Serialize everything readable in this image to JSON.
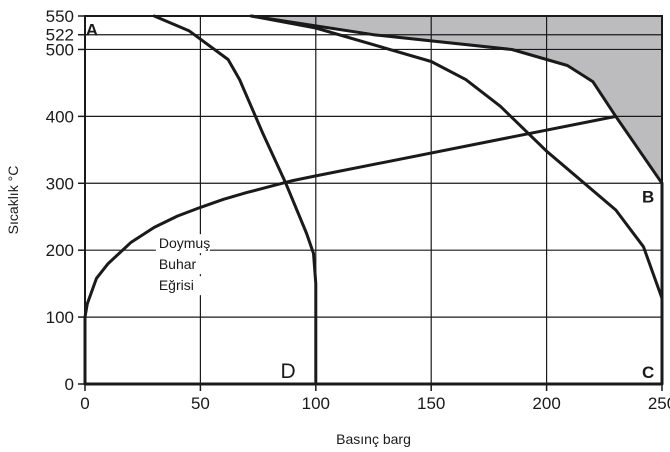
{
  "chart_data": {
    "type": "line",
    "xlabel": "Basınç barg",
    "ylabel": "Sıcaklık °C",
    "xlim": [
      0,
      250
    ],
    "ylim": [
      0,
      550
    ],
    "x_ticks": [
      0,
      50,
      100,
      150,
      200,
      250
    ],
    "y_ticks": [
      0,
      100,
      200,
      300,
      400,
      500,
      522,
      550
    ],
    "grid": true,
    "shaded_color": "#bcbcbe",
    "line_color": "#1a1a1a",
    "corner_labels": [
      {
        "key": "A",
        "text": "A",
        "x": 3,
        "y": 530
      },
      {
        "key": "B",
        "text": "B",
        "x": 244,
        "y": 280
      },
      {
        "key": "C",
        "text": "C",
        "x": 244,
        "y": 18
      },
      {
        "key": "D",
        "text": "D",
        "x": 88,
        "y": 18
      }
    ],
    "annotation": {
      "lines": [
        "Doymuş",
        "Buhar",
        "Eğrisi"
      ],
      "x": 32,
      "y": 203
    },
    "shaded_region": {
      "points": [
        [
          72,
          550
        ],
        [
          125,
          522
        ],
        [
          185,
          500
        ],
        [
          209,
          476
        ],
        [
          220,
          452
        ],
        [
          230,
          400
        ],
        [
          250,
          300
        ],
        [
          250,
          550
        ]
      ]
    },
    "series": [
      {
        "key": "saturation",
        "points": [
          [
            0,
            100
          ],
          [
            1,
            120
          ],
          [
            5,
            158
          ],
          [
            10,
            180
          ],
          [
            20,
            212
          ],
          [
            30,
            234
          ],
          [
            40,
            251
          ],
          [
            50,
            264
          ],
          [
            60,
            276
          ],
          [
            70,
            286
          ],
          [
            80,
            295
          ],
          [
            90,
            304
          ],
          [
            100,
            311
          ],
          [
            230,
            400
          ]
        ]
      },
      {
        "key": "outer",
        "points": [
          [
            72,
            550
          ],
          [
            125,
            522
          ],
          [
            185,
            500
          ],
          [
            209,
            476
          ],
          [
            220,
            452
          ],
          [
            230,
            400
          ],
          [
            250,
            300
          ]
        ]
      },
      {
        "key": "boundary_d",
        "points": [
          [
            30,
            550
          ],
          [
            45,
            528
          ],
          [
            62,
            485
          ],
          [
            67,
            455
          ],
          [
            77,
            375
          ],
          [
            87,
            300
          ],
          [
            96,
            225
          ],
          [
            99,
            195
          ],
          [
            100,
            150
          ],
          [
            100,
            0
          ]
        ]
      },
      {
        "key": "boundary_middle",
        "points": [
          [
            72,
            550
          ],
          [
            100,
            532
          ],
          [
            150,
            482
          ],
          [
            165,
            455
          ],
          [
            180,
            415
          ],
          [
            200,
            348
          ],
          [
            230,
            260
          ],
          [
            242,
            205
          ],
          [
            250,
            128
          ]
        ]
      },
      {
        "key": "boundary_b",
        "points": [
          [
            0,
            100
          ],
          [
            0,
            0
          ],
          [
            250,
            0
          ],
          [
            250,
            300
          ]
        ]
      }
    ]
  }
}
